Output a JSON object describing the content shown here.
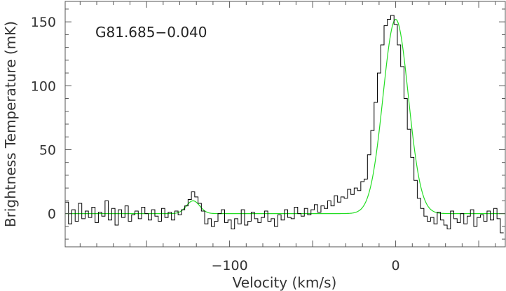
{
  "chart_data": {
    "type": "line",
    "title": "",
    "annotation": "G81.685−0.040",
    "xlabel": "Velocity (km/s)",
    "ylabel": "Brightness Temperature (mK)",
    "xlim": [
      -199,
      66
    ],
    "ylim": [
      -26,
      166
    ],
    "xticks_major": [
      -100,
      0
    ],
    "xtick_labels": [
      "−100",
      "0"
    ],
    "yticks_major": [
      0,
      50,
      100,
      150
    ],
    "ytick_labels": [
      "0",
      "50",
      "100",
      "150"
    ],
    "grid": false,
    "legend": "none",
    "series": [
      {
        "style": "histogram",
        "color": "#000000",
        "channel_width": 2.0,
        "x": [
          -198,
          -196,
          -194,
          -192,
          -190,
          -188,
          -186,
          -184,
          -182,
          -180,
          -178,
          -176,
          -174,
          -172,
          -170,
          -168,
          -166,
          -164,
          -162,
          -160,
          -158,
          -156,
          -154,
          -152,
          -150,
          -148,
          -146,
          -144,
          -142,
          -140,
          -138,
          -136,
          -134,
          -132,
          -130,
          -128,
          -126,
          -124,
          -122,
          -120,
          -118,
          -116,
          -114,
          -112,
          -110,
          -108,
          -106,
          -104,
          -102,
          -100,
          -98,
          -96,
          -94,
          -92,
          -90,
          -88,
          -86,
          -84,
          -82,
          -80,
          -78,
          -76,
          -74,
          -72,
          -70,
          -68,
          -66,
          -64,
          -62,
          -60,
          -58,
          -56,
          -54,
          -52,
          -50,
          -48,
          -46,
          -44,
          -42,
          -40,
          -38,
          -36,
          -34,
          -32,
          -30,
          -28,
          -26,
          -24,
          -22,
          -20,
          -18,
          -16,
          -14,
          -12,
          -10,
          -8,
          -6,
          -4,
          -2,
          0,
          2,
          4,
          6,
          8,
          10,
          12,
          14,
          16,
          18,
          20,
          22,
          24,
          26,
          28,
          30,
          32,
          34,
          36,
          38,
          40,
          42,
          44,
          46,
          48,
          50,
          52,
          54,
          56,
          58,
          60,
          62,
          64
        ],
        "y": [
          9,
          -8,
          3,
          -6,
          8,
          -4,
          2,
          -3,
          5,
          -7,
          1,
          -2,
          10,
          -5,
          4,
          -9,
          3,
          -3,
          6,
          -6,
          -1,
          2,
          -4,
          5,
          0,
          -5,
          3,
          -2,
          -6,
          4,
          -3,
          1,
          -5,
          2,
          -1,
          3,
          6,
          11,
          17,
          13,
          8,
          2,
          -8,
          -4,
          -10,
          -6,
          0,
          3,
          -7,
          -5,
          -12,
          -4,
          -8,
          3,
          -9,
          -6,
          1,
          -4,
          -7,
          -3,
          2,
          -6,
          -4,
          -10,
          -1,
          -5,
          3,
          -3,
          -4,
          5,
          0,
          -2,
          4,
          -1,
          3,
          7,
          1,
          6,
          4,
          10,
          6,
          14,
          9,
          13,
          12,
          19,
          15,
          20,
          18,
          25,
          27,
          46,
          65,
          87,
          110,
          132,
          147,
          152,
          155,
          148,
          132,
          115,
          90,
          66,
          44,
          26,
          12,
          4,
          -2,
          -6,
          -3,
          -8,
          1,
          -5,
          -9,
          -12,
          2,
          -4,
          -7,
          0,
          -8,
          -2,
          3,
          -10,
          -3,
          -1,
          -6,
          2,
          -5,
          4,
          -4,
          -15
        ]
      },
      {
        "style": "smooth",
        "color": "#22dd22",
        "gaussians": [
          {
            "center": 0,
            "sigma": 7.6,
            "amplitude": 152
          },
          {
            "center": -122,
            "sigma": 4.0,
            "amplitude": 10
          }
        ]
      }
    ]
  }
}
